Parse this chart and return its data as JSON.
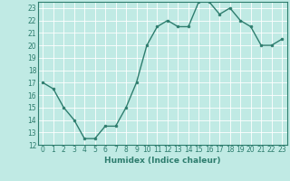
{
  "title": "",
  "xlabel": "Humidex (Indice chaleur)",
  "ylabel": "",
  "x": [
    0,
    1,
    2,
    3,
    4,
    5,
    6,
    7,
    8,
    9,
    10,
    11,
    12,
    13,
    14,
    15,
    16,
    17,
    18,
    19,
    20,
    21,
    22,
    23
  ],
  "y": [
    17,
    16.5,
    15,
    14,
    12.5,
    12.5,
    13.5,
    13.5,
    15,
    17,
    20,
    21.5,
    22,
    21.5,
    21.5,
    23.5,
    23.5,
    22.5,
    23,
    22,
    21.5,
    20,
    20,
    20.5
  ],
  "ylim": [
    12,
    23.5
  ],
  "xlim": [
    -0.5,
    23.5
  ],
  "yticks": [
    12,
    13,
    14,
    15,
    16,
    17,
    18,
    19,
    20,
    21,
    22,
    23
  ],
  "xticks": [
    0,
    1,
    2,
    3,
    4,
    5,
    6,
    7,
    8,
    9,
    10,
    11,
    12,
    13,
    14,
    15,
    16,
    17,
    18,
    19,
    20,
    21,
    22,
    23
  ],
  "line_color": "#2e7d6e",
  "marker_color": "#2e7d6e",
  "bg_color": "#c0eae4",
  "grid_color": "#ffffff",
  "tick_label_fontsize": 5.5,
  "xlabel_fontsize": 6.5,
  "marker": "o",
  "marker_size": 2.0,
  "line_width": 1.0
}
